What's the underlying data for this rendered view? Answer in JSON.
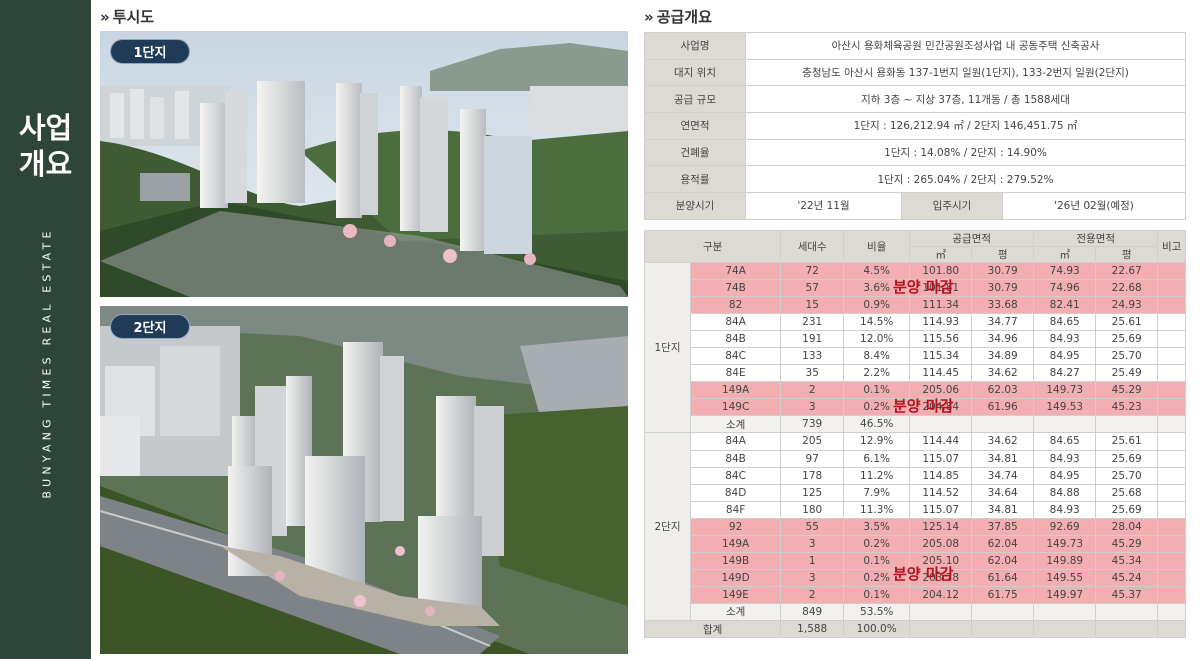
{
  "sidebar": {
    "title_line1": "사업",
    "title_line2": "개요",
    "brand": "BUNYANG TIMES REAL ESTATE"
  },
  "perspective": {
    "heading": "투시도",
    "chevron": "»",
    "photo1_label": "1단지",
    "photo2_label": "2단지"
  },
  "supply_overview": {
    "heading": "공급개요",
    "chevron": "»",
    "rows": [
      {
        "label": "사업명",
        "value": "아산시 용화체육공원 민간공원조성사업 내 공동주택 신축공사"
      },
      {
        "label": "대지 위치",
        "value": "충청남도 아산시 용화동 137-1번지 일원(1단지), 133-2번지 일원(2단지)"
      },
      {
        "label": "공급 규모",
        "value": "지하 3층 ~ 지상 37층, 11개동 / 총 1588세대"
      },
      {
        "label": "연면적",
        "value": "1단지 : 126,212.94 ㎡ / 2단지 146,451.75 ㎡"
      },
      {
        "label": "건폐율",
        "value": "1단지 : 14.08% / 2단지 : 14.90%"
      },
      {
        "label": "용적률",
        "value": "1단지 : 265.04% / 2단지 : 279.52%"
      }
    ],
    "sale_label": "분양시기",
    "sale_value": "'22년 11월",
    "move_label": "입주시기",
    "move_value": "'26년 02월(예정)"
  },
  "unit_table": {
    "headers": {
      "type": "구분",
      "households": "세대수",
      "ratio": "비율",
      "supply_area": "공급면적",
      "exclusive_area": "전용면적",
      "note": "비고",
      "sqm": "㎡",
      "pyeong": "평"
    },
    "complex1": {
      "label": "1단지",
      "rows": [
        [
          "74A",
          "72",
          "4.5%",
          "101.80",
          "30.79",
          "74.93",
          "22.67"
        ],
        [
          "74B",
          "57",
          "3.6%",
          "101.81",
          "30.79",
          "74.96",
          "22.68"
        ],
        [
          "82",
          "15",
          "0.9%",
          "111.34",
          "33.68",
          "82.41",
          "24.93"
        ],
        [
          "84A",
          "231",
          "14.5%",
          "114.93",
          "34.77",
          "84.65",
          "25.61"
        ],
        [
          "84B",
          "191",
          "12.0%",
          "115.56",
          "34.96",
          "84.93",
          "25.69"
        ],
        [
          "84C",
          "133",
          "8.4%",
          "115.34",
          "34.89",
          "84.95",
          "25.70"
        ],
        [
          "84E",
          "35",
          "2.2%",
          "114.45",
          "34.62",
          "84.27",
          "25.49"
        ],
        [
          "149A",
          "2",
          "0.1%",
          "205.06",
          "62.03",
          "149.73",
          "45.29"
        ],
        [
          "149C",
          "3",
          "0.2%",
          "204.84",
          "61.96",
          "149.53",
          "45.23"
        ]
      ],
      "subtotal": [
        "소계",
        "739",
        "46.5%"
      ]
    },
    "complex2": {
      "label": "2단지",
      "rows": [
        [
          "84A",
          "205",
          "12.9%",
          "114.44",
          "34.62",
          "84.65",
          "25.61"
        ],
        [
          "84B",
          "97",
          "6.1%",
          "115.07",
          "34.81",
          "84.93",
          "25.69"
        ],
        [
          "84C",
          "178",
          "11.2%",
          "114.85",
          "34.74",
          "84.95",
          "25.70"
        ],
        [
          "84D",
          "125",
          "7.9%",
          "114.52",
          "34.64",
          "84.88",
          "25.68"
        ],
        [
          "84F",
          "180",
          "11.3%",
          "115.07",
          "34.81",
          "84.93",
          "25.69"
        ],
        [
          "92",
          "55",
          "3.5%",
          "125.14",
          "37.85",
          "92.69",
          "28.04"
        ],
        [
          "149A",
          "3",
          "0.2%",
          "205.08",
          "62.04",
          "149.73",
          "45.29"
        ],
        [
          "149B",
          "1",
          "0.1%",
          "205.10",
          "62.04",
          "149.89",
          "45.34"
        ],
        [
          "149D",
          "3",
          "0.2%",
          "203.78",
          "61.64",
          "149.55",
          "45.24"
        ],
        [
          "149E",
          "2",
          "0.1%",
          "204.12",
          "61.75",
          "149.97",
          "45.37"
        ]
      ],
      "subtotal": [
        "소계",
        "849",
        "53.5%"
      ]
    },
    "total": [
      "합계",
      "1,588",
      "100.0%"
    ],
    "sold_out_label": "분양 마감",
    "highlight_color": "#f3aeb2"
  }
}
